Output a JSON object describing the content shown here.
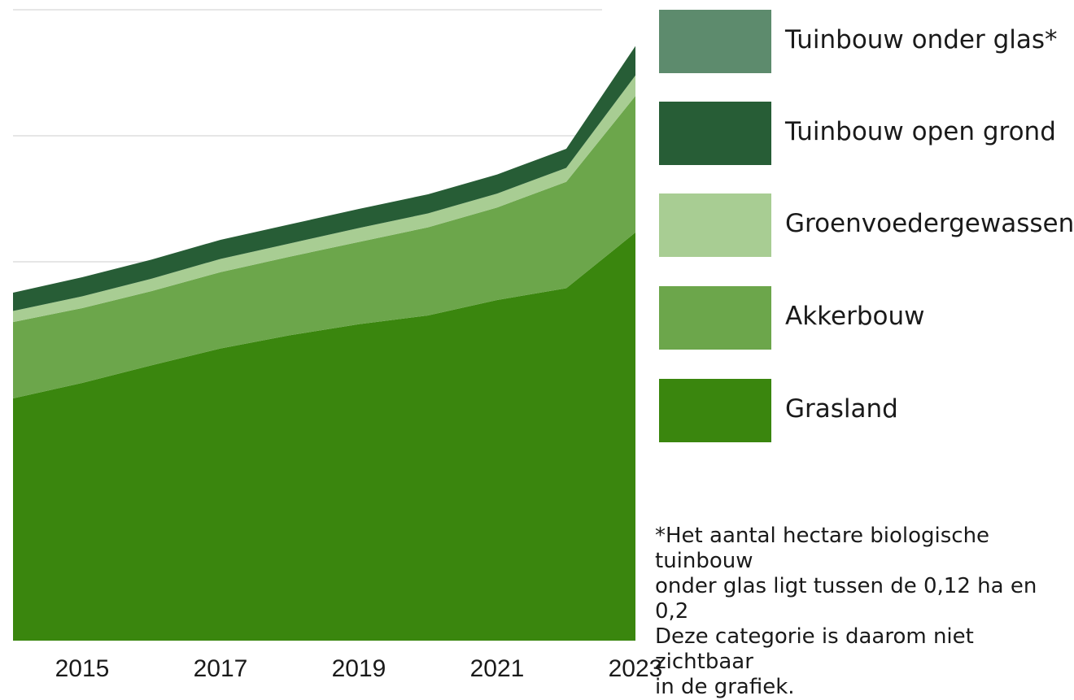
{
  "chart_data": {
    "type": "area",
    "stacked": true,
    "x": [
      2014,
      2015,
      2016,
      2017,
      2018,
      2019,
      2020,
      2021,
      2022,
      2023
    ],
    "x_ticks": [
      "2015",
      "2017",
      "2019",
      "2021",
      "2023"
    ],
    "grid": "horizontal",
    "legend_position": "right",
    "series": [
      {
        "name": "Grasland",
        "color": "#3a860e",
        "values": [
          33,
          35.1,
          37.5,
          39.8,
          41.6,
          43.1,
          44.3,
          46.4,
          48,
          55.6
        ]
      },
      {
        "name": "Akkerbouw",
        "color": "#6ca64b",
        "values": [
          10.4,
          10.2,
          10.1,
          10.4,
          10.7,
          11.2,
          12,
          12.6,
          14.5,
          18.6
        ]
      },
      {
        "name": "Groenvoedergewassen",
        "color": "#a8cd93",
        "values": [
          1.5,
          1.6,
          1.7,
          1.8,
          1.8,
          1.9,
          1.9,
          1.9,
          1.9,
          2.8
        ]
      },
      {
        "name": "Tuinbouw open grond",
        "color": "#275d36",
        "values": [
          2.5,
          2.6,
          2.6,
          2.6,
          2.6,
          2.6,
          2.6,
          2.6,
          2.6,
          4
        ]
      },
      {
        "name": "Tuinbouw onder glas*",
        "color": "#5d8b6d",
        "values": [
          0,
          0,
          0,
          0,
          0,
          0,
          0,
          0,
          0,
          0
        ]
      }
    ],
    "ylim": [
      0,
      86
    ]
  },
  "legend": [
    {
      "label": "Tuinbouw onder glas*",
      "color": "#5d8b6d"
    },
    {
      "label": "Tuinbouw open grond",
      "color": "#275d36"
    },
    {
      "label": "Groenvoedergewassen",
      "color": "#a8cd93"
    },
    {
      "label": "Akkerbouw",
      "color": "#6ca64b"
    },
    {
      "label": "Grasland",
      "color": "#3a860e"
    }
  ],
  "footnote": "*Het aantal hectare biologische tuinbouw\nonder glas ligt tussen de 0,12 ha en 0,2\nDeze categorie is daarom niet zichtbaar\nin de grafiek."
}
